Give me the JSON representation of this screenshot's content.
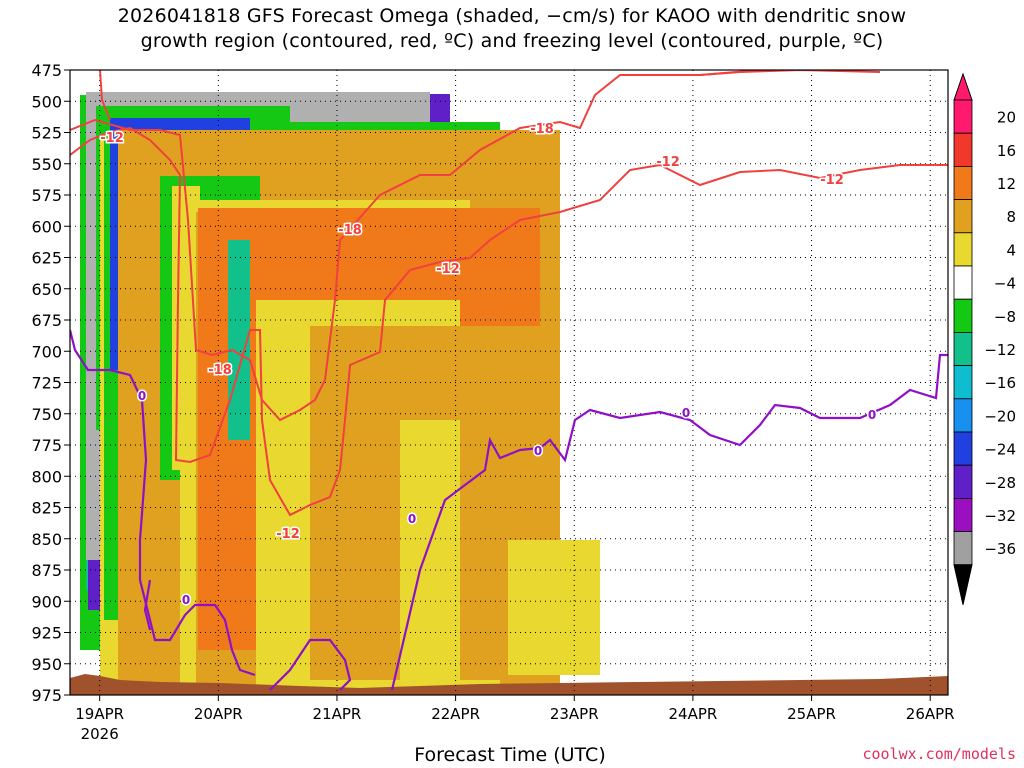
{
  "title_lines": [
    "2026041818 GFS Forecast Omega (shaded, −cm/s) for KAOO with dendritic snow",
    "growth region (contoured, red, ºC) and freezing level (contoured, purple, ºC)"
  ],
  "x_axis_title": "Forecast Time (UTC)",
  "credit": "coolwx.com/models",
  "chart_data": {
    "type": "heatmap",
    "x_label": "Forecast Time (UTC)",
    "x_ticks": [
      "19APR",
      "20APR",
      "21APR",
      "22APR",
      "23APR",
      "24APR",
      "25APR",
      "26APR"
    ],
    "x_year_label": "2026",
    "y_label": "",
    "y_ticks": [
      475,
      500,
      525,
      550,
      575,
      600,
      625,
      650,
      675,
      700,
      725,
      750,
      775,
      800,
      825,
      850,
      875,
      900,
      925,
      950,
      975
    ],
    "y_range_hpa": [
      475,
      975
    ],
    "x_range_days": [
      0,
      7.4
    ],
    "colorbar": {
      "tick_labels": [
        "20",
        "16",
        "12",
        "8",
        "4",
        "−4",
        "−8",
        "−12",
        "−16",
        "−20",
        "−24",
        "−28",
        "−32",
        "−36"
      ],
      "colors": [
        "#ff1a6e",
        "#f0392a",
        "#f07a1a",
        "#e0a020",
        "#e8d830",
        "#ffffff",
        "#14c814",
        "#12c08c",
        "#10bcd0",
        "#1890f0",
        "#2040e0",
        "#6020c8",
        "#9a10c0",
        "#a0a0a0"
      ]
    },
    "dgz_contour_labels": [
      "-12",
      "-18",
      "-18",
      "-12",
      "-18",
      "-12",
      "-12",
      "-12"
    ],
    "freezing_contour_labels": [
      "0",
      "0",
      "0",
      "0",
      "0",
      "0"
    ],
    "contour_colors": {
      "dgz": "#f04040",
      "freezing": "#9010c8",
      "ground": "#a0522d"
    }
  }
}
